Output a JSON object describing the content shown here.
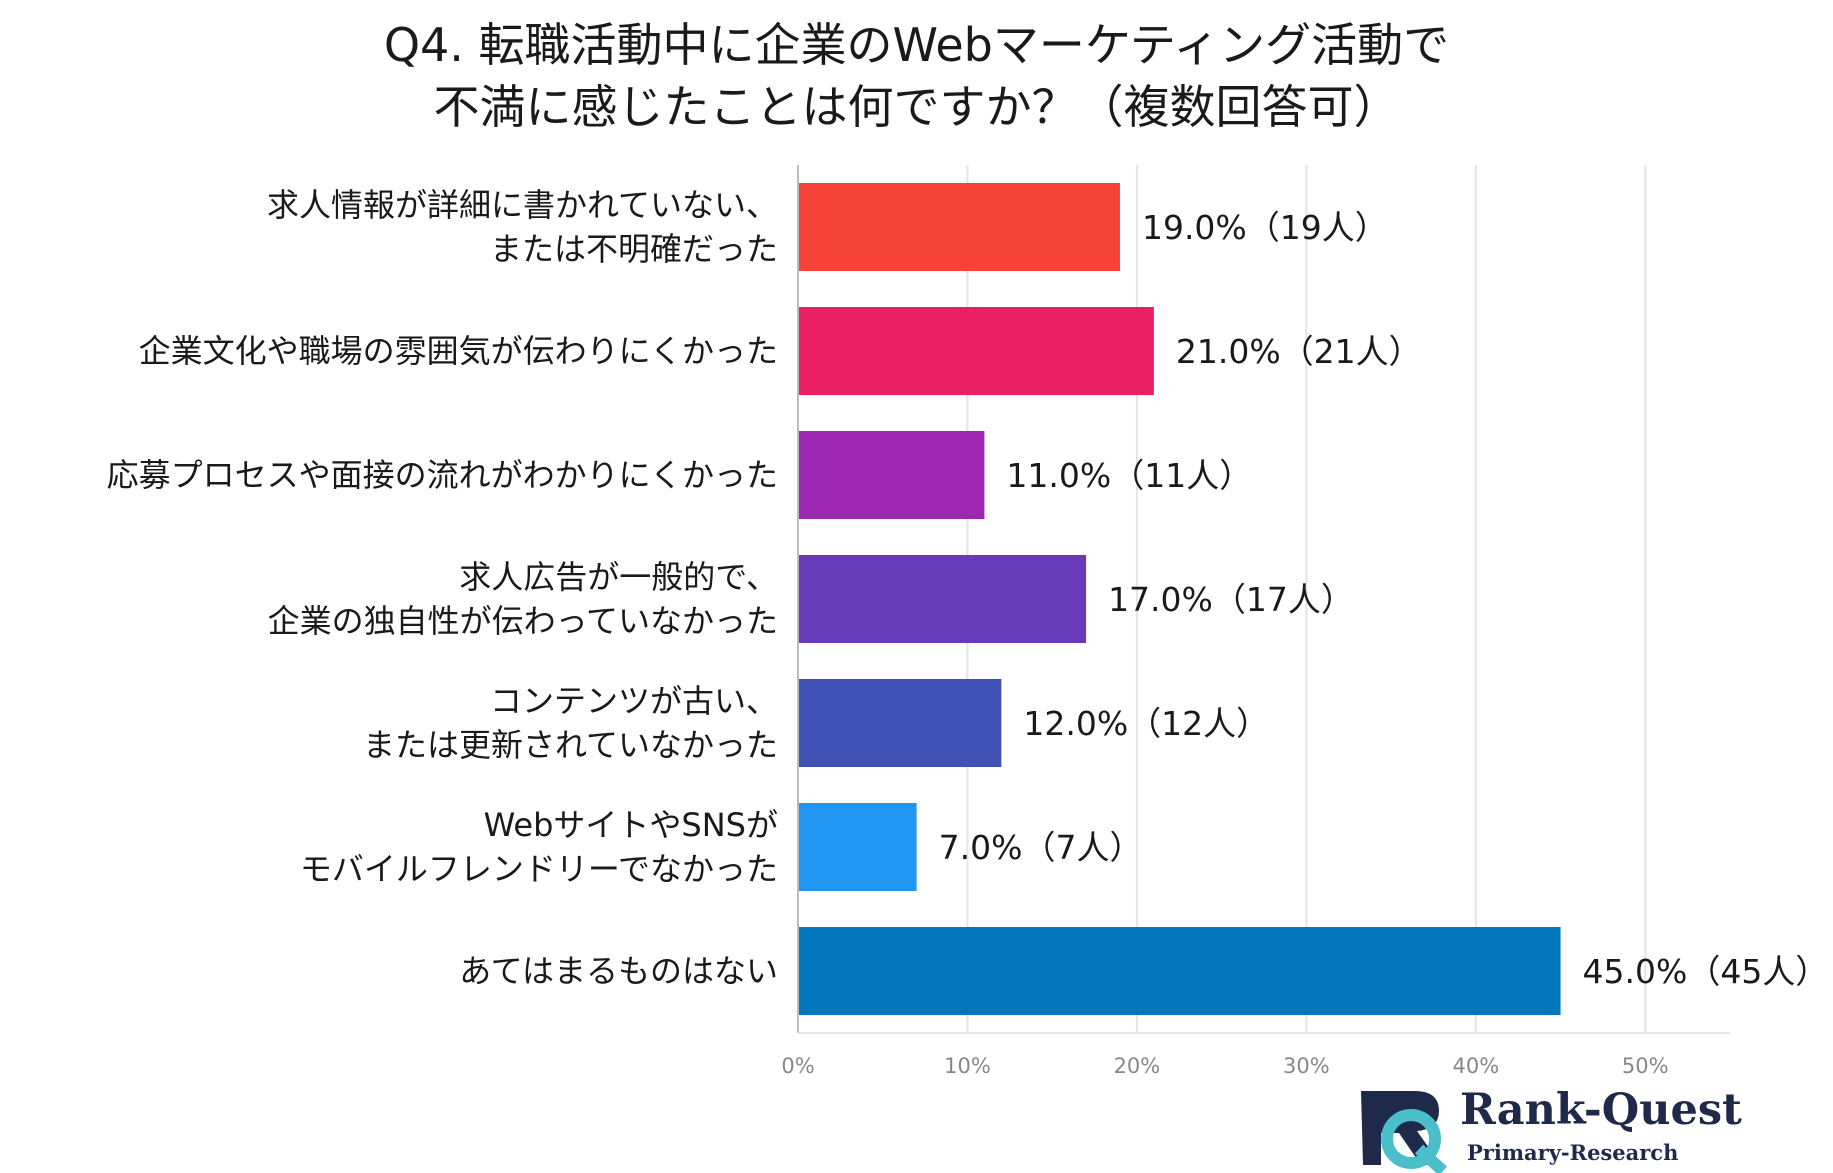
{
  "title": {
    "line1": "Q4. 転職活動中に企業のWebマーケティング活動で",
    "line2": "不満に感じたことは何ですか？（複数回答可）"
  },
  "chart_data": {
    "type": "bar",
    "orientation": "horizontal",
    "categories": [
      [
        "求人情報が詳細に書かれていない、",
        "または不明確だった"
      ],
      [
        "企業文化や職場の雰囲気が伝わりにくかった"
      ],
      [
        "応募プロセスや面接の流れがわかりにくかった"
      ],
      [
        "求人広告が一般的で、",
        "企業の独自性が伝わっていなかった"
      ],
      [
        "コンテンツが古い、",
        "または更新されていなかった"
      ],
      [
        "WebサイトやSNSが",
        "モバイルフレンドリーでなかった"
      ],
      [
        "あてはまるものはない"
      ]
    ],
    "values": [
      19.0,
      21.0,
      11.0,
      17.0,
      12.0,
      7.0,
      45.0
    ],
    "data_labels": [
      "19.0%（19人）",
      "21.0%（21人）",
      "11.0%（11人）",
      "17.0%（17人）",
      "12.0%（12人）",
      "7.0%（7人）",
      "45.0%（45人）"
    ],
    "colors": [
      "#f44336",
      "#e91e63",
      "#9c27b0",
      "#673ab7",
      "#3f51b5",
      "#2196f3",
      "#0277bd"
    ],
    "xlim": [
      0,
      55
    ],
    "x_ticks": [
      0,
      10,
      20,
      30,
      40,
      50
    ],
    "x_tick_labels": [
      "0%",
      "10%",
      "20%",
      "30%",
      "40%",
      "50%"
    ],
    "grid": true,
    "xlabel": "",
    "ylabel": ""
  },
  "logo": {
    "brand": "Rank-Quest",
    "sub": "Primary-Research",
    "primary_color": "#1f2a4a",
    "accent_color": "#4bbfc9"
  }
}
